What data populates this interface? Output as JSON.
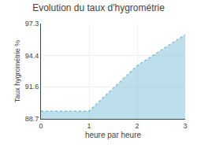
{
  "chart_data": {
    "type": "area",
    "title": "Evolution du taux d'hygrométrie",
    "xlabel": "heure par heure",
    "ylabel": "Taux hygrométrie %",
    "x": [
      0,
      1,
      2,
      3
    ],
    "values": [
      89.4,
      89.4,
      93.5,
      96.3
    ],
    "color": "#7bbfd8",
    "line_style": "dotted",
    "xlim": [
      0,
      3
    ],
    "xticks": [
      0,
      1,
      2,
      3
    ],
    "ylim": [
      88.7,
      97.3
    ],
    "yticks": [
      88.7,
      91.6,
      94.4,
      97.3
    ],
    "grid": true
  }
}
